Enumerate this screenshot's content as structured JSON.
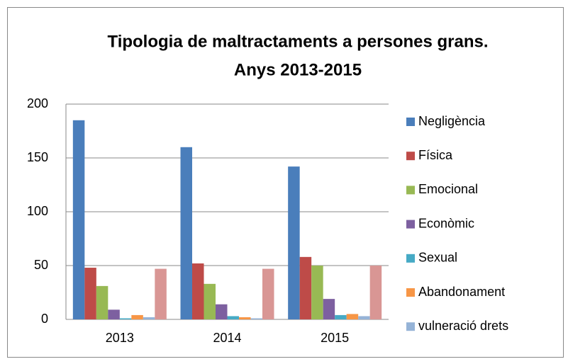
{
  "chart_data": {
    "type": "bar",
    "title": [
      "Tipologia de maltractaments a persones grans.",
      "Anys 2013-2015"
    ],
    "categories": [
      "2013",
      "2014",
      "2015"
    ],
    "series": [
      {
        "name": "Negligència",
        "color": "#4a7ebb",
        "values": [
          185,
          160,
          142
        ]
      },
      {
        "name": "Física",
        "color": "#be4b48",
        "values": [
          48,
          52,
          58
        ]
      },
      {
        "name": "Emocional",
        "color": "#98b954",
        "values": [
          31,
          33,
          50
        ]
      },
      {
        "name": "Econòmic",
        "color": "#7d60a0",
        "values": [
          9,
          14,
          19
        ]
      },
      {
        "name": "Sexual",
        "color": "#46aac5",
        "values": [
          1,
          3,
          4
        ]
      },
      {
        "name": "Abandonament",
        "color": "#f79646",
        "values": [
          4,
          2,
          5
        ]
      },
      {
        "name": "vulneració drets",
        "color": "#95b3d7",
        "values": [
          2,
          1,
          3
        ]
      },
      {
        "name": null,
        "color": "#d99694",
        "values": [
          47,
          47,
          50
        ]
      }
    ],
    "ylim": [
      0,
      200
    ],
    "yticks": [
      0,
      50,
      100,
      150,
      200
    ],
    "grid": true,
    "legend": "right"
  }
}
